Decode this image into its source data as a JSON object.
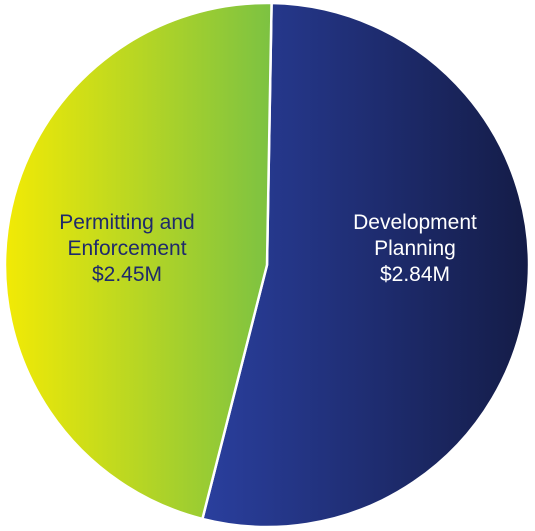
{
  "chart_data": {
    "type": "pie",
    "slices": [
      {
        "label_lines": [
          "Development",
          "Planning"
        ],
        "value_label": "$2.84M",
        "value": 2.84,
        "color_start": "#2a3f9e",
        "color_end": "#141c47",
        "text_color": "#ffffff"
      },
      {
        "label_lines": [
          "Permitting and",
          "Enforcement"
        ],
        "value_label": "$2.45M",
        "value": 2.45,
        "color_start": "#f2ea05",
        "color_end": "#7cc242",
        "text_color": "#1f2a6b"
      }
    ],
    "unit": "$M",
    "legend": "none"
  }
}
